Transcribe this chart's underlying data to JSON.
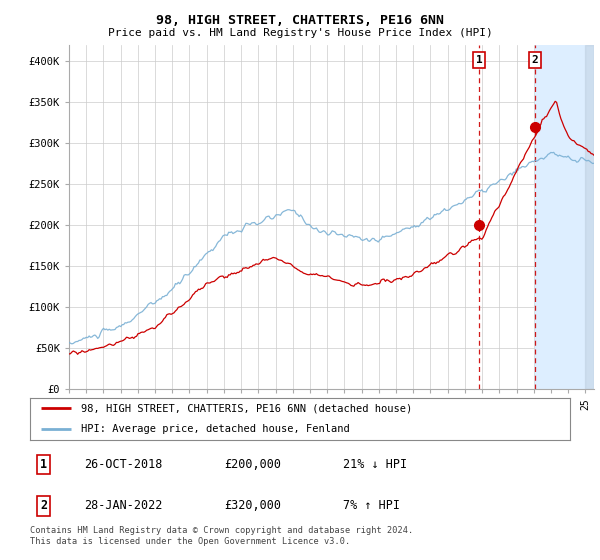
{
  "title": "98, HIGH STREET, CHATTERIS, PE16 6NN",
  "subtitle": "Price paid vs. HM Land Registry's House Price Index (HPI)",
  "ylim": [
    0,
    420000
  ],
  "yticks": [
    0,
    50000,
    100000,
    150000,
    200000,
    250000,
    300000,
    350000,
    400000
  ],
  "ytick_labels": [
    "£0",
    "£50K",
    "£100K",
    "£150K",
    "£200K",
    "£250K",
    "£300K",
    "£350K",
    "£400K"
  ],
  "xlim_start": 1995.0,
  "xlim_end": 2025.5,
  "hpi_color": "#7ab0d4",
  "price_color": "#cc0000",
  "transaction1_x": 2018.82,
  "transaction1_y": 200000,
  "transaction2_x": 2022.08,
  "transaction2_y": 320000,
  "legend_label1": "98, HIGH STREET, CHATTERIS, PE16 6NN (detached house)",
  "legend_label2": "HPI: Average price, detached house, Fenland",
  "table_row1_num": "1",
  "table_row1_date": "26-OCT-2018",
  "table_row1_price": "£200,000",
  "table_row1_hpi": "21% ↓ HPI",
  "table_row2_num": "2",
  "table_row2_date": "28-JAN-2022",
  "table_row2_price": "£320,000",
  "table_row2_hpi": "7% ↑ HPI",
  "footnote": "Contains HM Land Registry data © Crown copyright and database right 2024.\nThis data is licensed under the Open Government Licence v3.0.",
  "shade_start": 2022.08,
  "dashed_line1_x": 2018.82,
  "dashed_line2_x": 2022.08,
  "background_color": "#ffffff",
  "grid_color": "#cccccc",
  "shade_color": "#ddeeff"
}
